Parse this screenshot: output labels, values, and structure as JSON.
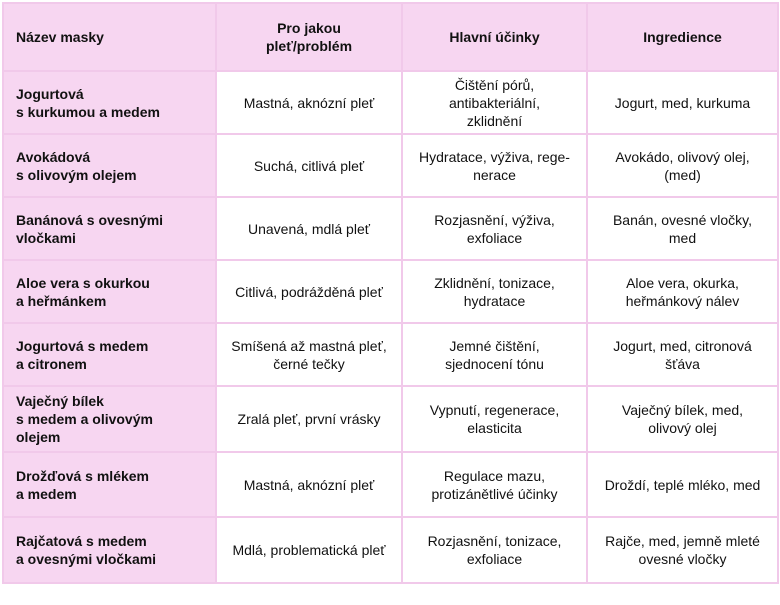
{
  "table": {
    "header": [
      "Název masky",
      "Pro jakou\npleť/problém",
      "Hlavní účinky",
      "Ingredience"
    ],
    "rows": [
      [
        "Jogurtová\ns kurkumou a medem",
        "Mastná, aknózní pleť",
        "Čištění pórů,\nantibakteriální,\nzklidnění",
        "Jogurt, med, kurkuma"
      ],
      [
        "Avokádová\ns olivovým olejem",
        "Suchá, citlivá pleť",
        "Hydratace, výživa, rege-\nnerace",
        "Avokádo, olivový olej,\n(med)"
      ],
      [
        "Banánová s ovesnými\nvločkami",
        "Unavená, mdlá pleť",
        "Rozjasnění, výživa,\nexfoliace",
        "Banán, ovesné vločky,\nmed"
      ],
      [
        "Aloe vera s okurkou\na heřmánkem",
        "Citlivá, podrážděná pleť",
        "Zklidnění, tonizace,\nhydratace",
        "Aloe vera, okurka,\nheřmánkový nálev"
      ],
      [
        "Jogurtová s medem\na citronem",
        "Smíšená až mastná pleť,\nčerné tečky",
        "Jemné čištění,\nsjednocení tónu",
        "Jogurt, med, citronová\nšťáva"
      ],
      [
        "Vaječný bílek\ns medem a olivovým\nolejem",
        "Zralá pleť, první vrásky",
        "Vypnutí, regenerace,\nelasticita",
        "Vaječný bílek, med,\nolivový olej"
      ],
      [
        "Drožďová s mlékem\na medem",
        "Mastná, aknózní pleť",
        "Regulace mazu,\nprotizánětlivé účinky",
        "Droždí, teplé mléko, med"
      ],
      [
        "Rajčatová s medem\na ovesnými vločkami",
        "Mdlá, problematická pleť",
        "Rozjasnění, tonizace,\nexfoliace",
        "Rajče, med, jemně mleté\novesné vločky"
      ]
    ]
  }
}
